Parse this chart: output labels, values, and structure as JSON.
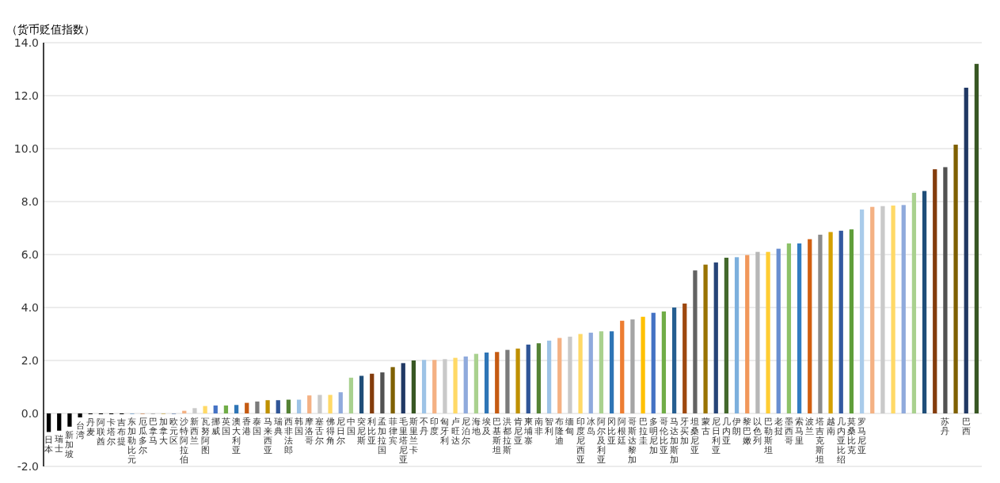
{
  "chart_data": {
    "type": "bar",
    "ylabel": "（货币贬值指数）",
    "categories": [
      "日本",
      "瑞士",
      "新加坡",
      "台湾",
      "丹麦",
      "阿联酋",
      "卡塔尔",
      "吉布提",
      "东加勒比元",
      "厄瓜多尔",
      "巴拿马",
      "加拿大",
      "欧元区",
      "沙特阿拉伯",
      "新西兰",
      "瓦努阿图",
      "挪威",
      "英国",
      "澳大利亚",
      "香港",
      "泰国",
      "马来西亚",
      "瑞典",
      "西非法郎",
      "韩国",
      "摩洛哥",
      "塞舌尔",
      "佛得角",
      "尼日尔",
      "中国",
      "突尼斯",
      "利比亚",
      "孟加拉国",
      "菲律宾",
      "毛里塔尼亚",
      "斯里兰卡",
      "不丹",
      "印度",
      "匈牙利",
      "卢旺达",
      "尼泊尔",
      "海地",
      "埃及",
      "巴基斯坦",
      "洪都拉斯",
      "肯尼亚",
      "柬埔寨",
      "南非",
      "智利",
      "布隆迪",
      "缅甸",
      "印度尼西亚",
      "冰岛",
      "阿尔及利亚",
      "冈比亚",
      "阿根廷",
      "哥斯达黎加",
      "巴拉圭",
      "多明尼加",
      "哥伦比亚",
      "马达加斯加",
      "牙买加",
      "坦桑尼亚",
      "蒙古",
      "尼日利亚",
      "几内亚",
      "伊朗",
      "黎巴嫩",
      "以色列",
      "巴勒斯坦",
      "老挝",
      "墨西哥",
      "索马里",
      "波兰",
      "塔吉克斯坦",
      "越南",
      "几内亚比绍",
      "莫桑比克",
      "罗马尼亚",
      null,
      null,
      null,
      null,
      null,
      null,
      null,
      "苏丹",
      null,
      "巴西",
      null
    ],
    "values": [
      -0.7,
      -0.65,
      -0.5,
      -0.15,
      -0.03,
      -0.03,
      -0.03,
      -0.03,
      0,
      0,
      0,
      0,
      0,
      0.1,
      0.2,
      0.28,
      0.3,
      0.3,
      0.32,
      0.4,
      0.45,
      0.5,
      0.5,
      0.52,
      0.52,
      0.68,
      0.7,
      0.7,
      0.8,
      1.35,
      1.42,
      1.5,
      1.55,
      1.75,
      1.9,
      2.0,
      2.02,
      2.02,
      2.05,
      2.1,
      2.15,
      2.25,
      2.3,
      2.32,
      2.4,
      2.45,
      2.6,
      2.65,
      2.75,
      2.85,
      2.9,
      3.0,
      3.05,
      3.1,
      3.1,
      3.5,
      3.55,
      3.65,
      3.8,
      3.85,
      4.0,
      4.15,
      5.4,
      5.62,
      5.7,
      5.88,
      5.9,
      5.98,
      6.1,
      6.1,
      6.22,
      6.42,
      6.42,
      6.58,
      6.75,
      6.85,
      6.9,
      6.95,
      7.7,
      7.8,
      7.83,
      7.85,
      7.87,
      8.33,
      8.4,
      9.22,
      9.3,
      10.15,
      12.3,
      13.2
    ],
    "colors": [
      "#000000",
      "#000000",
      "#000000",
      "#000000",
      "#000000",
      "#000000",
      "#000000",
      "#000000",
      "#2e75b6",
      "#c55a11",
      "#7b7b7b",
      "#bf9000",
      "#2f5597",
      "#f4b183",
      "#c9c9c9",
      "#ffd966",
      "#4472c4",
      "#70ad47",
      "#2e75b6",
      "#c55a11",
      "#7b7b7b",
      "#bf9000",
      "#2f5597",
      "#548235",
      "#9dc3e6",
      "#f4b183",
      "#c9c9c9",
      "#ffd966",
      "#8faadc",
      "#a9d18e",
      "#1f4e79",
      "#843c0c",
      "#525252",
      "#7f6000",
      "#203864",
      "#385723",
      "#9dc3e6",
      "#f4b183",
      "#c9c9c9",
      "#ffd966",
      "#8faadc",
      "#a9d18e",
      "#2e75b6",
      "#c55a11",
      "#7b7b7b",
      "#bf9000",
      "#2f5597",
      "#548235",
      "#9dc3e6",
      "#f4b183",
      "#c9c9c9",
      "#ffd966",
      "#8faadc",
      "#a9d18e",
      "#2e75b6",
      "#ed7d31",
      "#a5a5a5",
      "#ffc000",
      "#4472c4",
      "#70ad47",
      "#255e91",
      "#9e480e",
      "#636363",
      "#997300",
      "#264478",
      "#43682b",
      "#7cafdd",
      "#f1975a",
      "#b7b7b7",
      "#ffcd33",
      "#698ed0",
      "#8cc168",
      "#327dc2",
      "#d26012",
      "#8c8c8c",
      "#d4a000",
      "#335aa1",
      "#5f9e3a",
      "#a9cbea",
      "#f4b183",
      "#c9c9c9",
      "#ffd966",
      "#8faadc",
      "#a9d18e",
      "#1f4e79",
      "#843c0c",
      "#525252",
      "#7f6000",
      "#203864",
      "#385723"
    ],
    "ylim": [
      -2,
      14
    ],
    "yticks": [
      {
        "value": -2,
        "label": "-2.0"
      },
      {
        "value": 0,
        "label": "0.0"
      },
      {
        "value": 2,
        "label": "2.0"
      },
      {
        "value": 4,
        "label": "4.0"
      },
      {
        "value": 6,
        "label": "6.0"
      },
      {
        "value": 8,
        "label": "8.0"
      },
      {
        "value": 10,
        "label": "10.0"
      },
      {
        "value": 12,
        "label": "12.0"
      },
      {
        "value": 14,
        "label": "14.0"
      }
    ],
    "grid": "y"
  }
}
